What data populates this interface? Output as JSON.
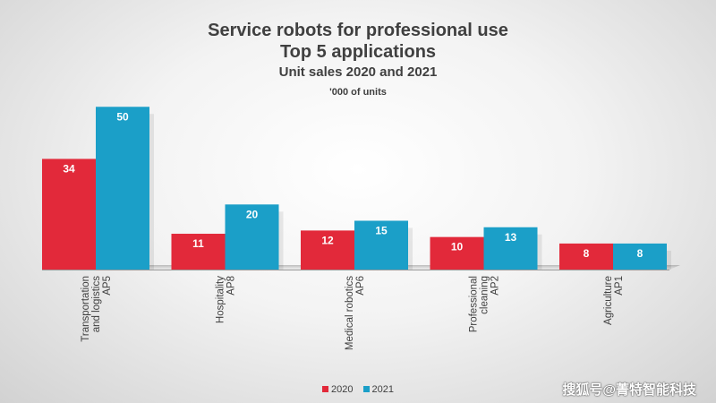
{
  "chart_data": {
    "type": "bar",
    "title": "Service robots for professional use",
    "subtitle": "Top 5 applications",
    "subtitle2": "Unit sales 2020 and 2021",
    "unit_label": "'000 of units",
    "categories": [
      [
        "Transportation",
        "and logistics",
        "AP5"
      ],
      [
        "Hospitality",
        "AP8"
      ],
      [
        "Medical robotics",
        "AP6"
      ],
      [
        "Professional",
        "cleaning",
        "AP2"
      ],
      [
        "Agriculture",
        "AP1"
      ]
    ],
    "series": [
      {
        "name": "2020",
        "values": [
          34,
          11,
          12,
          10,
          8
        ],
        "color": "#e2293a"
      },
      {
        "name": "2021",
        "values": [
          50,
          20,
          15,
          13,
          8
        ],
        "color": "#1b9fc8"
      }
    ],
    "ylim": [
      0,
      52
    ],
    "grid": false,
    "legend_position": "bottom"
  },
  "watermark": "搜狐号@菁特智能科技"
}
